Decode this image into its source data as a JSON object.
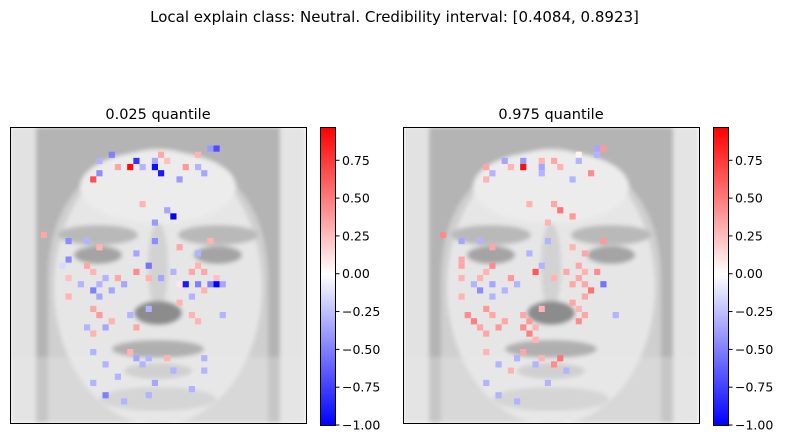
{
  "figure": {
    "suptitle": "Local explain class: Neutral. Credibility interval: [0.4084, 0.8923]"
  },
  "chart_data": [
    {
      "type": "heatmap",
      "title": "0.025 quantile",
      "colormap": "bwr",
      "colorbar": {
        "vmin": -1.0,
        "vmax": 0.97,
        "ticks": [
          0.75,
          0.5,
          0.25,
          0.0,
          -0.25,
          -0.5,
          -0.75,
          -1.0
        ],
        "tick_labels": [
          "0.75",
          "0.50",
          "0.25",
          "0.00",
          "−0.25",
          "−0.50",
          "−0.75",
          "−1.00"
        ]
      },
      "grid_size": [
        48,
        48
      ],
      "background": "grayscale face image, axes ticks hidden",
      "highlighted_pixels": [
        {
          "row": 3,
          "col": 32,
          "v": -0.4
        },
        {
          "row": 3,
          "col": 33,
          "v": -0.7
        },
        {
          "row": 4,
          "col": 16,
          "v": -0.5
        },
        {
          "row": 4,
          "col": 24,
          "v": 0.35
        },
        {
          "row": 4,
          "col": 30,
          "v": 0.3
        },
        {
          "row": 5,
          "col": 14,
          "v": -0.3
        },
        {
          "row": 5,
          "col": 20,
          "v": -0.8
        },
        {
          "row": 5,
          "col": 23,
          "v": -0.35
        },
        {
          "row": 5,
          "col": 25,
          "v": 0.25
        },
        {
          "row": 6,
          "col": 17,
          "v": 0.35
        },
        {
          "row": 6,
          "col": 19,
          "v": 0.95
        },
        {
          "row": 6,
          "col": 21,
          "v": -0.3
        },
        {
          "row": 6,
          "col": 23,
          "v": -0.95
        },
        {
          "row": 6,
          "col": 28,
          "v": 0.4
        },
        {
          "row": 6,
          "col": 30,
          "v": -0.3
        },
        {
          "row": 7,
          "col": 14,
          "v": -0.45
        },
        {
          "row": 7,
          "col": 24,
          "v": -0.9
        },
        {
          "row": 7,
          "col": 31,
          "v": -0.35
        },
        {
          "row": 8,
          "col": 13,
          "v": 0.7
        },
        {
          "row": 8,
          "col": 27,
          "v": -0.4
        },
        {
          "row": 12,
          "col": 21,
          "v": 0.3
        },
        {
          "row": 13,
          "col": 25,
          "v": -0.35
        },
        {
          "row": 14,
          "col": 26,
          "v": -1.0
        },
        {
          "row": 15,
          "col": 23,
          "v": -0.4
        },
        {
          "row": 17,
          "col": 5,
          "v": 0.35
        },
        {
          "row": 18,
          "col": 9,
          "v": -0.45
        },
        {
          "row": 18,
          "col": 12,
          "v": -0.3
        },
        {
          "row": 18,
          "col": 23,
          "v": -0.45
        },
        {
          "row": 18,
          "col": 32,
          "v": 0.3
        },
        {
          "row": 19,
          "col": 14,
          "v": 0.3
        },
        {
          "row": 19,
          "col": 27,
          "v": 0.35
        },
        {
          "row": 20,
          "col": 20,
          "v": -0.35
        },
        {
          "row": 20,
          "col": 30,
          "v": -0.3
        },
        {
          "row": 21,
          "col": 9,
          "v": -0.45
        },
        {
          "row": 22,
          "col": 8,
          "v": -0.15
        },
        {
          "row": 22,
          "col": 12,
          "v": 0.35
        },
        {
          "row": 22,
          "col": 22,
          "v": -0.55
        },
        {
          "row": 22,
          "col": 30,
          "v": 0.3
        },
        {
          "row": 23,
          "col": 13,
          "v": 0.3
        },
        {
          "row": 23,
          "col": 20,
          "v": 0.45
        },
        {
          "row": 23,
          "col": 26,
          "v": -0.3
        },
        {
          "row": 23,
          "col": 29,
          "v": 0.35
        },
        {
          "row": 23,
          "col": 31,
          "v": 0.35
        },
        {
          "row": 24,
          "col": 9,
          "v": 0.25
        },
        {
          "row": 24,
          "col": 15,
          "v": -0.3
        },
        {
          "row": 24,
          "col": 17,
          "v": 0.35
        },
        {
          "row": 24,
          "col": 22,
          "v": 0.3
        },
        {
          "row": 24,
          "col": 24,
          "v": -0.35
        },
        {
          "row": 24,
          "col": 33,
          "v": 0.25
        },
        {
          "row": 25,
          "col": 11,
          "v": -0.3
        },
        {
          "row": 25,
          "col": 14,
          "v": -0.3
        },
        {
          "row": 25,
          "col": 18,
          "v": -0.35
        },
        {
          "row": 25,
          "col": 27,
          "v": 0.1
        },
        {
          "row": 25,
          "col": 28,
          "v": -0.9
        },
        {
          "row": 25,
          "col": 30,
          "v": -0.5
        },
        {
          "row": 25,
          "col": 32,
          "v": -0.5
        },
        {
          "row": 25,
          "col": 33,
          "v": -1.0
        },
        {
          "row": 25,
          "col": 34,
          "v": -0.35
        },
        {
          "row": 26,
          "col": 13,
          "v": -0.5
        },
        {
          "row": 26,
          "col": 16,
          "v": -0.35
        },
        {
          "row": 26,
          "col": 31,
          "v": 0.3
        },
        {
          "row": 27,
          "col": 9,
          "v": 0.3
        },
        {
          "row": 27,
          "col": 14,
          "v": -0.35
        },
        {
          "row": 27,
          "col": 29,
          "v": -0.3
        },
        {
          "row": 28,
          "col": 27,
          "v": 0.3
        },
        {
          "row": 29,
          "col": 13,
          "v": 0.35
        },
        {
          "row": 29,
          "col": 22,
          "v": -0.3
        },
        {
          "row": 30,
          "col": 14,
          "v": 0.4
        },
        {
          "row": 30,
          "col": 19,
          "v": -0.3
        },
        {
          "row": 30,
          "col": 29,
          "v": 0.3
        },
        {
          "row": 30,
          "col": 34,
          "v": -0.3
        },
        {
          "row": 31,
          "col": 16,
          "v": 0.3
        },
        {
          "row": 31,
          "col": 30,
          "v": 0.3
        },
        {
          "row": 32,
          "col": 12,
          "v": -0.3
        },
        {
          "row": 32,
          "col": 15,
          "v": -0.35
        },
        {
          "row": 32,
          "col": 20,
          "v": 0.35
        },
        {
          "row": 33,
          "col": 13,
          "v": 0.3
        },
        {
          "row": 36,
          "col": 13,
          "v": -0.3
        },
        {
          "row": 36,
          "col": 19,
          "v": 0.3
        },
        {
          "row": 37,
          "col": 20,
          "v": -0.35
        },
        {
          "row": 37,
          "col": 22,
          "v": -0.3
        },
        {
          "row": 37,
          "col": 25,
          "v": 0.3
        },
        {
          "row": 37,
          "col": 31,
          "v": -0.3
        },
        {
          "row": 38,
          "col": 15,
          "v": -0.3
        },
        {
          "row": 38,
          "col": 21,
          "v": -0.3
        },
        {
          "row": 39,
          "col": 26,
          "v": -0.3
        },
        {
          "row": 39,
          "col": 31,
          "v": -0.3
        },
        {
          "row": 40,
          "col": 17,
          "v": -0.3
        },
        {
          "row": 41,
          "col": 13,
          "v": -0.3
        },
        {
          "row": 41,
          "col": 23,
          "v": -0.35
        },
        {
          "row": 42,
          "col": 29,
          "v": -0.3
        },
        {
          "row": 43,
          "col": 15,
          "v": -0.5
        },
        {
          "row": 43,
          "col": 22,
          "v": -0.3
        },
        {
          "row": 44,
          "col": 18,
          "v": -0.3
        }
      ]
    },
    {
      "type": "heatmap",
      "title": "0.975 quantile",
      "colormap": "bwr",
      "colorbar": {
        "vmin": -1.0,
        "vmax": 0.97,
        "ticks": [
          0.75,
          0.5,
          0.25,
          0.0,
          -0.25,
          -0.5,
          -0.75,
          -1.0
        ],
        "tick_labels": [
          "0.75",
          "0.50",
          "0.25",
          "0.00",
          "−0.25",
          "−0.50",
          "−0.75",
          "−1.00"
        ]
      },
      "grid_size": [
        48,
        48
      ],
      "background": "grayscale face image, axes ticks hidden",
      "highlighted_pixels": [
        {
          "row": 3,
          "col": 31,
          "v": -0.35
        },
        {
          "row": 3,
          "col": 32,
          "v": 0.4
        },
        {
          "row": 4,
          "col": 28,
          "v": 0.05
        },
        {
          "row": 4,
          "col": 31,
          "v": -0.3
        },
        {
          "row": 5,
          "col": 16,
          "v": -0.35
        },
        {
          "row": 5,
          "col": 19,
          "v": -0.4
        },
        {
          "row": 5,
          "col": 22,
          "v": 0.3
        },
        {
          "row": 5,
          "col": 24,
          "v": 0.35
        },
        {
          "row": 5,
          "col": 28,
          "v": -0.3
        },
        {
          "row": 6,
          "col": 13,
          "v": 0.35
        },
        {
          "row": 6,
          "col": 17,
          "v": 0.3
        },
        {
          "row": 6,
          "col": 19,
          "v": 0.95
        },
        {
          "row": 6,
          "col": 22,
          "v": -0.35
        },
        {
          "row": 6,
          "col": 25,
          "v": 0.3
        },
        {
          "row": 7,
          "col": 14,
          "v": -0.3
        },
        {
          "row": 7,
          "col": 22,
          "v": -0.3
        },
        {
          "row": 7,
          "col": 30,
          "v": 0.45
        },
        {
          "row": 8,
          "col": 13,
          "v": 0.3
        },
        {
          "row": 8,
          "col": 27,
          "v": -0.3
        },
        {
          "row": 12,
          "col": 20,
          "v": 0.3
        },
        {
          "row": 12,
          "col": 24,
          "v": 0.35
        },
        {
          "row": 13,
          "col": 25,
          "v": 0.55
        },
        {
          "row": 14,
          "col": 27,
          "v": 0.4
        },
        {
          "row": 15,
          "col": 23,
          "v": 0.3
        },
        {
          "row": 17,
          "col": 6,
          "v": 0.45
        },
        {
          "row": 18,
          "col": 9,
          "v": -0.35
        },
        {
          "row": 18,
          "col": 12,
          "v": -0.3
        },
        {
          "row": 18,
          "col": 23,
          "v": -0.3
        },
        {
          "row": 18,
          "col": 32,
          "v": 0.4
        },
        {
          "row": 19,
          "col": 14,
          "v": 0.35
        },
        {
          "row": 19,
          "col": 27,
          "v": 0.3
        },
        {
          "row": 20,
          "col": 20,
          "v": -0.3
        },
        {
          "row": 20,
          "col": 29,
          "v": 0.35
        },
        {
          "row": 21,
          "col": 9,
          "v": 0.35
        },
        {
          "row": 22,
          "col": 9,
          "v": 0.35
        },
        {
          "row": 22,
          "col": 14,
          "v": 0.45
        },
        {
          "row": 22,
          "col": 22,
          "v": -0.3
        },
        {
          "row": 22,
          "col": 28,
          "v": 0.35
        },
        {
          "row": 23,
          "col": 13,
          "v": 0.3
        },
        {
          "row": 23,
          "col": 21,
          "v": 0.65
        },
        {
          "row": 23,
          "col": 26,
          "v": 0.35
        },
        {
          "row": 23,
          "col": 29,
          "v": 0.3
        },
        {
          "row": 23,
          "col": 31,
          "v": 0.45
        },
        {
          "row": 24,
          "col": 9,
          "v": 0.3
        },
        {
          "row": 24,
          "col": 12,
          "v": 0.3
        },
        {
          "row": 24,
          "col": 17,
          "v": 0.4
        },
        {
          "row": 24,
          "col": 24,
          "v": 0.3
        },
        {
          "row": 24,
          "col": 28,
          "v": 0.35
        },
        {
          "row": 25,
          "col": 11,
          "v": -0.3
        },
        {
          "row": 25,
          "col": 14,
          "v": -0.35
        },
        {
          "row": 25,
          "col": 18,
          "v": -0.3
        },
        {
          "row": 25,
          "col": 27,
          "v": 0.35
        },
        {
          "row": 25,
          "col": 29,
          "v": 0.35
        },
        {
          "row": 25,
          "col": 32,
          "v": -0.55
        },
        {
          "row": 26,
          "col": 12,
          "v": -0.45
        },
        {
          "row": 26,
          "col": 16,
          "v": -0.3
        },
        {
          "row": 26,
          "col": 30,
          "v": 0.55
        },
        {
          "row": 27,
          "col": 9,
          "v": 0.3
        },
        {
          "row": 27,
          "col": 14,
          "v": -0.3
        },
        {
          "row": 27,
          "col": 29,
          "v": 0.35
        },
        {
          "row": 28,
          "col": 27,
          "v": 0.35
        },
        {
          "row": 29,
          "col": 13,
          "v": 0.4
        },
        {
          "row": 29,
          "col": 22,
          "v": 0.3
        },
        {
          "row": 29,
          "col": 28,
          "v": 0.3
        },
        {
          "row": 30,
          "col": 10,
          "v": 0.45
        },
        {
          "row": 30,
          "col": 14,
          "v": 0.35
        },
        {
          "row": 30,
          "col": 19,
          "v": 0.35
        },
        {
          "row": 30,
          "col": 29,
          "v": 0.35
        },
        {
          "row": 30,
          "col": 34,
          "v": -0.3
        },
        {
          "row": 31,
          "col": 11,
          "v": 0.5
        },
        {
          "row": 31,
          "col": 16,
          "v": 0.35
        },
        {
          "row": 31,
          "col": 20,
          "v": 0.4
        },
        {
          "row": 31,
          "col": 28,
          "v": 0.45
        },
        {
          "row": 32,
          "col": 12,
          "v": 0.35
        },
        {
          "row": 32,
          "col": 15,
          "v": 0.4
        },
        {
          "row": 32,
          "col": 19,
          "v": 0.45
        },
        {
          "row": 32,
          "col": 21,
          "v": 0.3
        },
        {
          "row": 33,
          "col": 13,
          "v": 0.35
        },
        {
          "row": 33,
          "col": 20,
          "v": 0.5
        },
        {
          "row": 34,
          "col": 21,
          "v": 0.3
        },
        {
          "row": 36,
          "col": 13,
          "v": 0.3
        },
        {
          "row": 36,
          "col": 19,
          "v": 0.35
        },
        {
          "row": 37,
          "col": 18,
          "v": -0.3
        },
        {
          "row": 37,
          "col": 22,
          "v": 0.3
        },
        {
          "row": 37,
          "col": 25,
          "v": 0.55
        },
        {
          "row": 38,
          "col": 15,
          "v": -0.3
        },
        {
          "row": 38,
          "col": 21,
          "v": -0.3
        },
        {
          "row": 38,
          "col": 24,
          "v": 0.45
        },
        {
          "row": 39,
          "col": 17,
          "v": 0.3
        },
        {
          "row": 39,
          "col": 26,
          "v": -0.3
        },
        {
          "row": 41,
          "col": 13,
          "v": -0.3
        },
        {
          "row": 41,
          "col": 23,
          "v": -0.3
        },
        {
          "row": 43,
          "col": 15,
          "v": -0.3
        },
        {
          "row": 44,
          "col": 18,
          "v": -0.3
        }
      ]
    }
  ]
}
